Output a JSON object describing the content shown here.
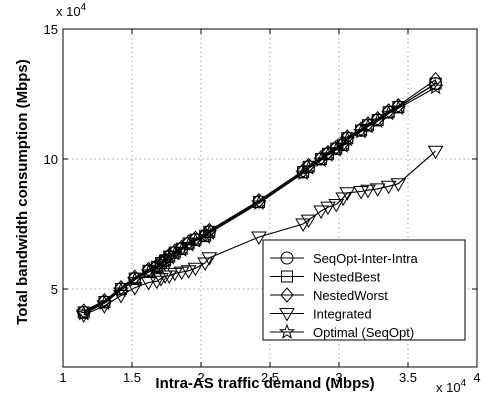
{
  "chart_data": {
    "type": "line",
    "xlabel": "Intra-AS traffic demand (Mbps)",
    "ylabel": "Total bandwidth consumption (Mbps)",
    "x_multiplier_label": "x 10",
    "x_multiplier_exp": "4",
    "y_multiplier_label": "x 10",
    "y_multiplier_exp": "4",
    "xlim": [
      1,
      4
    ],
    "ylim": [
      2,
      15
    ],
    "xticks": [
      1,
      1.5,
      2,
      2.5,
      3,
      3.5,
      4
    ],
    "xtick_labels": [
      "1",
      "1.5",
      "2",
      "2.5",
      "3",
      "3.5",
      "4"
    ],
    "yticks": [
      5,
      10,
      15
    ],
    "ytick_labels": [
      "5",
      "10",
      "15"
    ],
    "grid": true,
    "legend_position": "lower-right",
    "series": [
      {
        "name": "SeqOpt-Inter-Intra",
        "marker": "circle",
        "x": [
          1.15,
          1.3,
          1.42,
          1.52,
          1.62,
          1.68,
          1.71,
          1.74,
          1.77,
          1.81,
          1.86,
          1.91,
          1.96,
          2.03,
          2.06,
          2.42,
          2.74,
          2.78,
          2.87,
          2.92,
          2.98,
          3.03,
          3.06,
          3.16,
          3.21,
          3.28,
          3.36,
          3.43,
          3.7
        ],
        "y": [
          4.1,
          4.5,
          5.0,
          5.4,
          5.7,
          5.85,
          6.0,
          6.1,
          6.25,
          6.4,
          6.55,
          6.75,
          6.9,
          7.05,
          7.2,
          8.35,
          9.5,
          9.7,
          10.0,
          10.2,
          10.4,
          10.55,
          10.8,
          11.1,
          11.3,
          11.5,
          11.8,
          12.0,
          12.9
        ]
      },
      {
        "name": "NestedBest",
        "marker": "square",
        "x": [
          1.15,
          1.3,
          1.42,
          1.52,
          1.62,
          1.68,
          1.71,
          1.74,
          1.77,
          1.81,
          1.86,
          1.91,
          1.96,
          2.03,
          2.06,
          2.42,
          2.74,
          2.78,
          2.87,
          2.92,
          2.98,
          3.03,
          3.06,
          3.16,
          3.21,
          3.28,
          3.36,
          3.43,
          3.7
        ],
        "y": [
          4.1,
          4.5,
          5.0,
          5.4,
          5.7,
          5.85,
          6.0,
          6.1,
          6.25,
          6.4,
          6.55,
          6.75,
          6.9,
          7.05,
          7.2,
          8.35,
          9.5,
          9.7,
          10.0,
          10.2,
          10.4,
          10.55,
          10.8,
          11.1,
          11.3,
          11.5,
          11.8,
          12.0,
          12.9
        ]
      },
      {
        "name": "NestedWorst",
        "marker": "diamond",
        "x": [
          1.15,
          1.3,
          1.42,
          1.52,
          1.62,
          1.68,
          1.71,
          1.74,
          1.77,
          1.81,
          1.86,
          1.91,
          1.96,
          2.03,
          2.06,
          2.42,
          2.74,
          2.78,
          2.87,
          2.92,
          2.98,
          3.03,
          3.06,
          3.16,
          3.21,
          3.28,
          3.36,
          3.43,
          3.7
        ],
        "y": [
          4.15,
          4.55,
          5.05,
          5.45,
          5.75,
          5.9,
          6.05,
          6.15,
          6.3,
          6.45,
          6.6,
          6.8,
          6.95,
          7.1,
          7.25,
          8.4,
          9.55,
          9.75,
          10.05,
          10.25,
          10.45,
          10.6,
          10.85,
          11.15,
          11.35,
          11.55,
          11.85,
          12.05,
          13.05
        ]
      },
      {
        "name": "Integrated",
        "marker": "triangle-down",
        "x": [
          1.15,
          1.3,
          1.42,
          1.52,
          1.62,
          1.68,
          1.71,
          1.74,
          1.77,
          1.81,
          1.86,
          1.91,
          1.96,
          2.03,
          2.06,
          2.42,
          2.74,
          2.78,
          2.87,
          2.92,
          2.98,
          3.03,
          3.06,
          3.16,
          3.21,
          3.28,
          3.36,
          3.43,
          3.7
        ],
        "y": [
          4.0,
          4.35,
          4.75,
          5.05,
          5.25,
          5.3,
          5.4,
          5.5,
          5.5,
          5.6,
          5.65,
          5.7,
          5.8,
          6.0,
          6.2,
          7.0,
          7.5,
          7.65,
          8.0,
          8.15,
          8.25,
          8.5,
          8.7,
          8.75,
          8.8,
          8.85,
          8.95,
          9.05,
          10.3
        ]
      },
      {
        "name": "Optimal (SeqOpt)",
        "marker": "star",
        "x": [
          1.15,
          1.3,
          1.42,
          1.52,
          1.62,
          1.68,
          1.71,
          1.74,
          1.77,
          1.81,
          1.86,
          1.91,
          1.96,
          2.03,
          2.06,
          2.42,
          2.74,
          2.78,
          2.87,
          2.92,
          2.98,
          3.03,
          3.06,
          3.16,
          3.21,
          3.28,
          3.36,
          3.43,
          3.7
        ],
        "y": [
          4.05,
          4.45,
          4.95,
          5.35,
          5.65,
          5.8,
          5.95,
          6.05,
          6.2,
          6.35,
          6.5,
          6.7,
          6.85,
          7.0,
          7.15,
          8.3,
          9.45,
          9.65,
          9.95,
          10.15,
          10.35,
          10.5,
          10.75,
          11.05,
          11.25,
          11.45,
          11.75,
          11.95,
          12.75
        ]
      }
    ]
  }
}
